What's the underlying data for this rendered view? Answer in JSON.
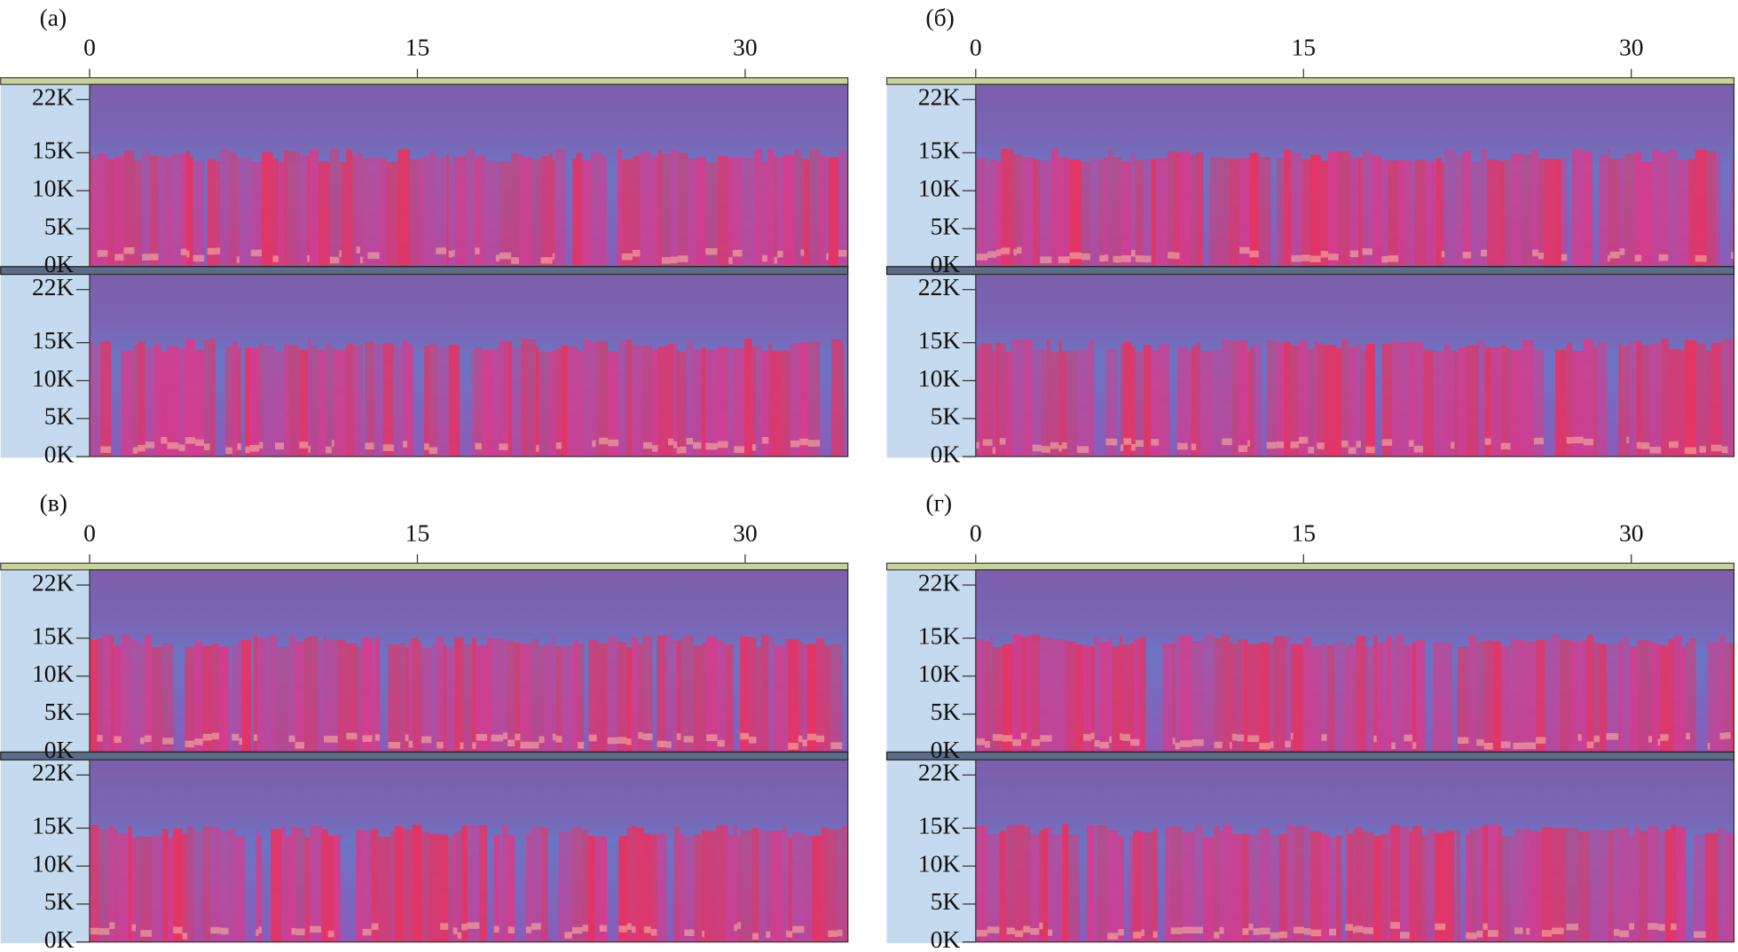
{
  "panels": [
    {
      "label": "(а)",
      "xlim": [
        0,
        34.7
      ],
      "xticks": [
        0,
        15,
        30
      ],
      "ylim": [
        0,
        24
      ],
      "yticks": [
        {
          "value": 22,
          "label": "22K"
        },
        {
          "value": 15,
          "label": "15K"
        },
        {
          "value": 10,
          "label": "10K"
        },
        {
          "value": 5,
          "label": "5K"
        },
        {
          "value": 0,
          "label": "0K"
        }
      ]
    },
    {
      "label": "(б)",
      "xlim": [
        0,
        34.7
      ],
      "xticks": [
        0,
        15,
        30
      ],
      "ylim": [
        0,
        24
      ],
      "yticks": [
        {
          "value": 22,
          "label": "22K"
        },
        {
          "value": 15,
          "label": "15K"
        },
        {
          "value": 10,
          "label": "10K"
        },
        {
          "value": 5,
          "label": "5K"
        },
        {
          "value": 0,
          "label": "0K"
        }
      ]
    },
    {
      "label": "(в)",
      "xlim": [
        0,
        34.7
      ],
      "xticks": [
        0,
        15,
        30
      ],
      "ylim": [
        0,
        24
      ],
      "yticks": [
        {
          "value": 22,
          "label": "22K"
        },
        {
          "value": 15,
          "label": "15K"
        },
        {
          "value": 10,
          "label": "10K"
        },
        {
          "value": 5,
          "label": "5K"
        },
        {
          "value": 0,
          "label": "0K"
        }
      ]
    },
    {
      "label": "(г)",
      "xlim": [
        0,
        34.7
      ],
      "xticks": [
        0,
        15,
        30
      ],
      "ylim": [
        0,
        24
      ],
      "yticks": [
        {
          "value": 22,
          "label": "22K"
        },
        {
          "value": 15,
          "label": "15K"
        },
        {
          "value": 10,
          "label": "10K"
        },
        {
          "value": 5,
          "label": "5K"
        },
        {
          "value": 0,
          "label": "0K"
        }
      ]
    }
  ]
}
